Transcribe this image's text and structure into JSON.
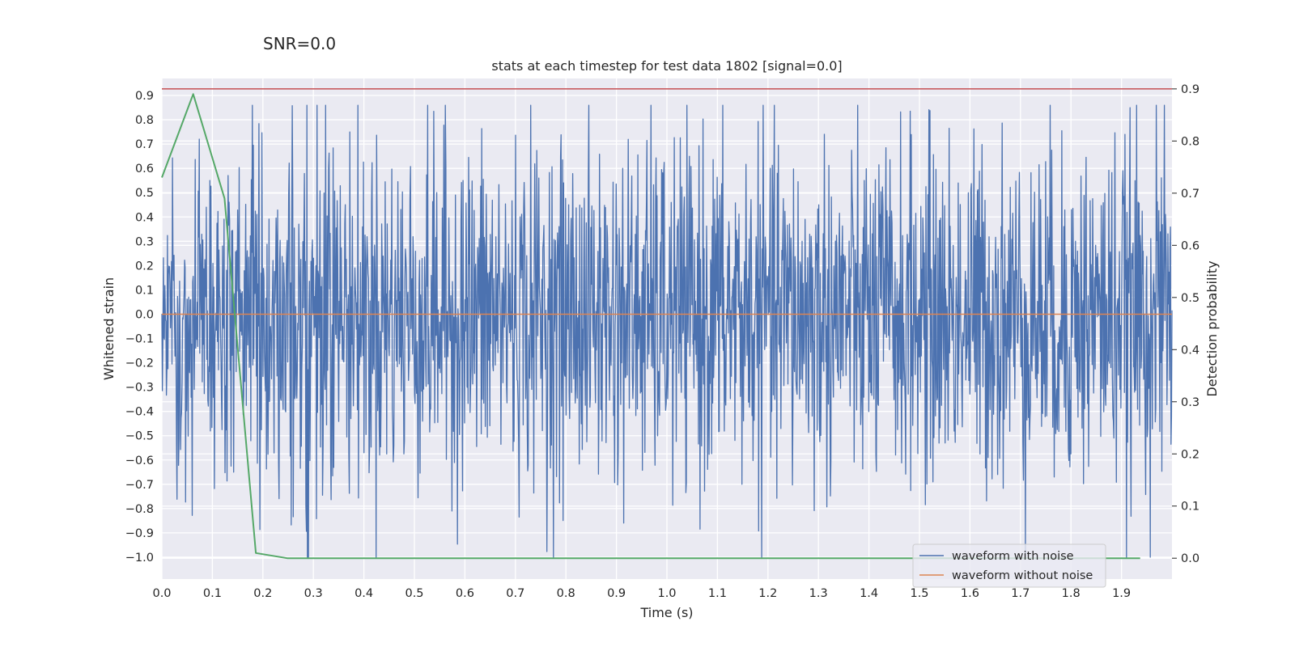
{
  "suptitle": "SNR=0.0",
  "chart_data": {
    "type": "line",
    "title": "stats at each timestep for test data 1802 [signal=0.0]",
    "xlabel": "Time (s)",
    "ylabel_left": "Whitened strain",
    "ylabel_right": "Detection probability",
    "xlim": [
      0.0,
      2.0
    ],
    "ylim_left": [
      -1.09,
      0.97
    ],
    "ylim_right": [
      -0.04,
      0.92
    ],
    "x_ticks": [
      "0.0",
      "0.1",
      "0.2",
      "0.3",
      "0.4",
      "0.5",
      "0.6",
      "0.7",
      "0.8",
      "0.9",
      "1.0",
      "1.1",
      "1.2",
      "1.3",
      "1.4",
      "1.5",
      "1.6",
      "1.7",
      "1.8",
      "1.9"
    ],
    "y_ticks_left": [
      "0.9",
      "0.8",
      "0.7",
      "0.6",
      "0.5",
      "0.4",
      "0.3",
      "0.2",
      "0.1",
      "0.0",
      "-0.1",
      "-0.2",
      "-0.3",
      "-0.4",
      "-0.5",
      "-0.6",
      "-0.7",
      "-0.8",
      "-0.9",
      "-1.0"
    ],
    "y_ticks_right": [
      "0.9",
      "0.8",
      "0.7",
      "0.6",
      "0.5",
      "0.4",
      "0.3",
      "0.2",
      "0.1",
      "0.0"
    ],
    "grid": true,
    "legend_position": "lower-right",
    "series": [
      {
        "name": "waveform with noise",
        "axis": "left",
        "color": "#4c72b0",
        "approx_amplitude": 0.35,
        "x_range": [
          0.0,
          2.0
        ]
      },
      {
        "name": "waveform without noise",
        "axis": "left",
        "color": "#dd8452",
        "x": [
          0.0,
          2.0
        ],
        "y": [
          0.0,
          0.0
        ]
      },
      {
        "axis": "right",
        "color": "#55a868",
        "x": [
          0.0,
          0.062,
          0.124,
          0.186,
          0.248,
          0.31,
          0.62,
          0.93,
          1.24,
          1.55,
          1.86,
          1.937
        ],
        "y": [
          0.73,
          0.89,
          0.69,
          0.01,
          0.0,
          0.0,
          0.0,
          0.0,
          0.0,
          0.0,
          0.0,
          0.0
        ]
      },
      {
        "axis": "right",
        "color": "#c44e52",
        "x": [
          0.0,
          2.0
        ],
        "y": [
          0.9,
          0.9
        ]
      }
    ]
  }
}
